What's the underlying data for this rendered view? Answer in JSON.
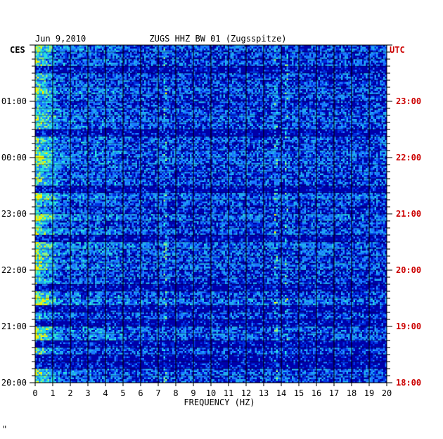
{
  "chart_data": {
    "type": "heatmap",
    "title": "ZUGS HHZ BW 01 (Zugsspitze)",
    "date": "Jun 9,2010",
    "left_zone": "CES",
    "right_zone": "UTC",
    "xlabel": "FREQUENCY (HZ)",
    "xlim": [
      0,
      20
    ],
    "x_ticks": [
      "0",
      "1",
      "2",
      "3",
      "4",
      "5",
      "6",
      "7",
      "8",
      "9",
      "10",
      "11",
      "12",
      "13",
      "14",
      "15",
      "16",
      "17",
      "18",
      "19",
      "20"
    ],
    "left_time_labels": [
      "01:00",
      "00:00",
      "23:00",
      "22:00",
      "21:00",
      "20:00"
    ],
    "right_time_labels": [
      "23:00",
      "22:00",
      "21:00",
      "20:00",
      "19:00",
      "18:00"
    ],
    "footer_mark": "\"",
    "colors": {
      "background": "#0000aa",
      "low": "#0010c8",
      "mid": "#1a78ff",
      "high": "#28e0e0",
      "peak": "#f0f000",
      "grid": "#000000",
      "utc_text": "#cc0000",
      "text": "#000000"
    },
    "features": [
      {
        "name": "low-frequency band",
        "freq_hz": [
          0,
          1.5
        ],
        "intensity": "high"
      },
      {
        "name": "narrow line",
        "freq_hz": 14.3,
        "time": "late",
        "intensity": "medium"
      },
      {
        "name": "line",
        "freq_hz": 7.4,
        "intensity": "medium"
      },
      {
        "name": "line",
        "freq_hz": 13.7,
        "intensity": "medium"
      }
    ]
  }
}
